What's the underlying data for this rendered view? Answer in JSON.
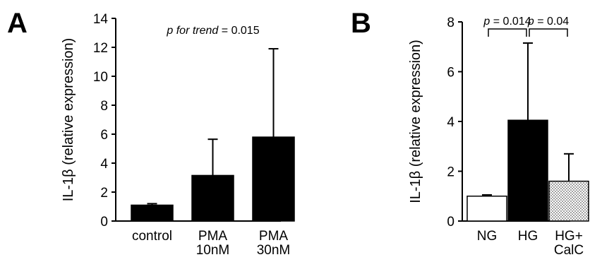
{
  "chart_data": [
    {
      "panel": "A",
      "type": "bar",
      "ylabel": "IL-1β (relative expression)",
      "ylim": [
        0,
        14
      ],
      "yticks": [
        0,
        2,
        4,
        6,
        8,
        10,
        12,
        14
      ],
      "categories": [
        [
          "control"
        ],
        [
          "PMA",
          "10nM"
        ],
        [
          "PMA",
          "30nM"
        ]
      ],
      "values": [
        1.1,
        3.15,
        5.8
      ],
      "errors": [
        0.1,
        2.5,
        6.1
      ],
      "bar_fills": [
        "black",
        "black",
        "black"
      ],
      "annotation": {
        "italic": "p for trend",
        "rest": " = 0.015"
      },
      "grid": false
    },
    {
      "panel": "B",
      "type": "bar",
      "ylabel": "IL-1β (relative expression)",
      "ylim": [
        0,
        8
      ],
      "yticks": [
        0,
        2,
        4,
        6,
        8
      ],
      "categories": [
        [
          "NG"
        ],
        [
          "HG"
        ],
        [
          "HG+",
          "CalC"
        ]
      ],
      "values": [
        1.0,
        4.05,
        1.6
      ],
      "errors": [
        0.05,
        3.1,
        1.1
      ],
      "bar_fills": [
        "white",
        "black",
        "dotted"
      ],
      "comparisons": [
        {
          "from": 0,
          "to": 1,
          "italic": "p",
          "rest": " = 0.014"
        },
        {
          "from": 1,
          "to": 2,
          "italic": "p",
          "rest": " = 0.04"
        }
      ],
      "grid": false
    }
  ]
}
